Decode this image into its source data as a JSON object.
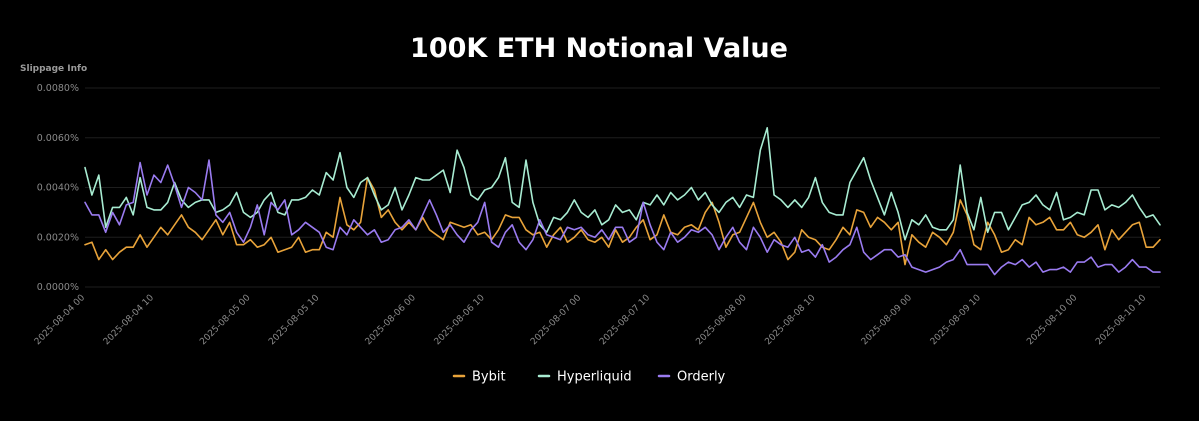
{
  "chart_data": {
    "type": "line",
    "title": "100K ETH Notional Value",
    "ylabel": "Slippage Info",
    "xlabel": "",
    "ylim": [
      0,
      0.008
    ],
    "y_ticks": [
      {
        "value": 0,
        "label": "0.0000%"
      },
      {
        "value": 0.002,
        "label": "0.0020%"
      },
      {
        "value": 0.004,
        "label": "0.0040%"
      },
      {
        "value": 0.006,
        "label": "0.0060%"
      },
      {
        "value": 0.008,
        "label": "0.0080%"
      }
    ],
    "x_start": "2025-08-04 00:00",
    "x_end": "2025-08-10 12:00",
    "x_ticks": [
      {
        "label": "2025-08-04 00",
        "at": "2025-08-04 00:00"
      },
      {
        "label": "2025-08-04 10",
        "at": "2025-08-04 10:00"
      },
      {
        "label": "2025-08-05 00",
        "at": "2025-08-05 00:00"
      },
      {
        "label": "2025-08-05 10",
        "at": "2025-08-05 10:00"
      },
      {
        "label": "2025-08-06 00",
        "at": "2025-08-06 00:00"
      },
      {
        "label": "2025-08-06 10",
        "at": "2025-08-06 10:00"
      },
      {
        "label": "2025-08-07 00",
        "at": "2025-08-07 00:00"
      },
      {
        "label": "2025-08-07 10",
        "at": "2025-08-07 10:00"
      },
      {
        "label": "2025-08-08 00",
        "at": "2025-08-08 00:00"
      },
      {
        "label": "2025-08-08 10",
        "at": "2025-08-08 10:00"
      },
      {
        "label": "2025-08-09 00",
        "at": "2025-08-09 00:00"
      },
      {
        "label": "2025-08-09 10",
        "at": "2025-08-09 10:00"
      },
      {
        "label": "2025-08-10 00",
        "at": "2025-08-10 00:00"
      },
      {
        "label": "2025-08-10 10",
        "at": "2025-08-10 10:00"
      }
    ],
    "grid": true,
    "legend_position": "bottom-center",
    "series": [
      {
        "name": "Bybit",
        "color": "#e8a33a",
        "values": [
          0.0017,
          0.0018,
          0.0011,
          0.0015,
          0.0011,
          0.0014,
          0.0016,
          0.0016,
          0.0021,
          0.0016,
          0.002,
          0.0024,
          0.0021,
          0.0025,
          0.0029,
          0.0024,
          0.0022,
          0.0019,
          0.0023,
          0.0027,
          0.0021,
          0.0026,
          0.0017,
          0.0017,
          0.0019,
          0.0016,
          0.0017,
          0.002,
          0.0014,
          0.0015,
          0.0016,
          0.002,
          0.0014,
          0.0015,
          0.0015,
          0.0022,
          0.002,
          0.0036,
          0.0025,
          0.0023,
          0.0026,
          0.0044,
          0.0039,
          0.0028,
          0.0031,
          0.0026,
          0.0023,
          0.0026,
          0.0023,
          0.0028,
          0.0023,
          0.0021,
          0.0019,
          0.0026,
          0.0025,
          0.0024,
          0.0025,
          0.0021,
          0.0022,
          0.0019,
          0.0023,
          0.0029,
          0.0028,
          0.0028,
          0.0023,
          0.0021,
          0.0022,
          0.0016,
          0.0021,
          0.0024,
          0.0018,
          0.002,
          0.0023,
          0.0019,
          0.0018,
          0.002,
          0.0016,
          0.0023,
          0.0018,
          0.002,
          0.0024,
          0.0027,
          0.0019,
          0.0021,
          0.0029,
          0.0022,
          0.0021,
          0.0024,
          0.0025,
          0.0023,
          0.003,
          0.0034,
          0.0026,
          0.0016,
          0.0021,
          0.0022,
          0.0028,
          0.0034,
          0.0026,
          0.002,
          0.0022,
          0.0018,
          0.0011,
          0.0014,
          0.0023,
          0.002,
          0.0019,
          0.0016,
          0.0015,
          0.0019,
          0.0024,
          0.0021,
          0.0031,
          0.003,
          0.0024,
          0.0028,
          0.0026,
          0.0023,
          0.0026,
          0.0009,
          0.0021,
          0.0018,
          0.0016,
          0.0022,
          0.002,
          0.0017,
          0.0022,
          0.0035,
          0.0029,
          0.0017,
          0.0015,
          0.0026,
          0.0021,
          0.0014,
          0.0015,
          0.0019,
          0.0017,
          0.0028,
          0.0025,
          0.0026,
          0.0028,
          0.0023,
          0.0023,
          0.0026,
          0.0021,
          0.002,
          0.0022,
          0.0025,
          0.0015,
          0.0023,
          0.0019,
          0.0022,
          0.0025,
          0.0026,
          0.0016,
          0.0016,
          0.0019
        ]
      },
      {
        "name": "Hyperliquid",
        "color": "#a8ecd2",
        "values": [
          0.0048,
          0.0037,
          0.0045,
          0.0024,
          0.0032,
          0.0032,
          0.0036,
          0.0029,
          0.0044,
          0.0032,
          0.0031,
          0.0031,
          0.0034,
          0.0042,
          0.0035,
          0.0032,
          0.0034,
          0.0035,
          0.0035,
          0.003,
          0.0031,
          0.0033,
          0.0038,
          0.003,
          0.0028,
          0.003,
          0.0035,
          0.0038,
          0.003,
          0.0029,
          0.0035,
          0.0035,
          0.0036,
          0.0039,
          0.0037,
          0.0046,
          0.0043,
          0.0054,
          0.004,
          0.0036,
          0.0042,
          0.0044,
          0.0037,
          0.0031,
          0.0033,
          0.004,
          0.0031,
          0.0037,
          0.0044,
          0.0043,
          0.0043,
          0.0045,
          0.0047,
          0.0038,
          0.0055,
          0.0048,
          0.0037,
          0.0035,
          0.0039,
          0.004,
          0.0044,
          0.0052,
          0.0034,
          0.0032,
          0.0051,
          0.0034,
          0.0025,
          0.0022,
          0.0028,
          0.0027,
          0.003,
          0.0035,
          0.003,
          0.0028,
          0.0031,
          0.0025,
          0.0027,
          0.0033,
          0.003,
          0.0031,
          0.0027,
          0.0034,
          0.0033,
          0.0037,
          0.0033,
          0.0038,
          0.0035,
          0.0037,
          0.004,
          0.0035,
          0.0038,
          0.0033,
          0.003,
          0.0034,
          0.0036,
          0.0032,
          0.0037,
          0.0036,
          0.0055,
          0.0064,
          0.0037,
          0.0035,
          0.0032,
          0.0035,
          0.0032,
          0.0036,
          0.0044,
          0.0034,
          0.003,
          0.0029,
          0.0029,
          0.0042,
          0.0047,
          0.0052,
          0.0043,
          0.0036,
          0.0029,
          0.0038,
          0.003,
          0.0019,
          0.0027,
          0.0025,
          0.0029,
          0.0024,
          0.0023,
          0.0023,
          0.0027,
          0.0049,
          0.003,
          0.0023,
          0.0036,
          0.0022,
          0.003,
          0.003,
          0.0023,
          0.0028,
          0.0033,
          0.0034,
          0.0037,
          0.0033,
          0.0031,
          0.0038,
          0.0027,
          0.0028,
          0.003,
          0.0029,
          0.0039,
          0.0039,
          0.0031,
          0.0033,
          0.0032,
          0.0034,
          0.0037,
          0.0032,
          0.0028,
          0.0029,
          0.0025
        ]
      },
      {
        "name": "Orderly",
        "color": "#9a7bf0",
        "values": [
          0.0034,
          0.0029,
          0.0029,
          0.0022,
          0.003,
          0.0025,
          0.0033,
          0.0034,
          0.005,
          0.0037,
          0.0045,
          0.0042,
          0.0049,
          0.0041,
          0.0032,
          0.004,
          0.0038,
          0.0035,
          0.0051,
          0.0029,
          0.0026,
          0.003,
          0.0022,
          0.0018,
          0.0024,
          0.0033,
          0.0021,
          0.0034,
          0.0031,
          0.0035,
          0.0021,
          0.0023,
          0.0026,
          0.0024,
          0.0022,
          0.0016,
          0.0015,
          0.0024,
          0.0021,
          0.0027,
          0.0024,
          0.0021,
          0.0023,
          0.0018,
          0.0019,
          0.0023,
          0.0024,
          0.0027,
          0.0023,
          0.0029,
          0.0035,
          0.0029,
          0.0022,
          0.0025,
          0.0021,
          0.0018,
          0.0023,
          0.0026,
          0.0034,
          0.0018,
          0.0016,
          0.0022,
          0.0025,
          0.0018,
          0.0015,
          0.0019,
          0.0027,
          0.0021,
          0.002,
          0.0019,
          0.0024,
          0.0023,
          0.0024,
          0.0021,
          0.002,
          0.0023,
          0.0019,
          0.0024,
          0.0024,
          0.0018,
          0.002,
          0.0034,
          0.0025,
          0.0018,
          0.0015,
          0.0022,
          0.0018,
          0.002,
          0.0023,
          0.0022,
          0.0024,
          0.0021,
          0.0015,
          0.002,
          0.0024,
          0.0018,
          0.0015,
          0.0024,
          0.002,
          0.0014,
          0.0019,
          0.0017,
          0.0016,
          0.002,
          0.0014,
          0.0015,
          0.0012,
          0.0017,
          0.001,
          0.0012,
          0.0015,
          0.0017,
          0.0024,
          0.0014,
          0.0011,
          0.0013,
          0.0015,
          0.0015,
          0.0012,
          0.0013,
          0.0008,
          0.0007,
          0.0006,
          0.0007,
          0.0008,
          0.001,
          0.0011,
          0.0015,
          0.0009,
          0.0009,
          0.0009,
          0.0009,
          0.0005,
          0.0008,
          0.001,
          0.0009,
          0.0011,
          0.0008,
          0.001,
          0.0006,
          0.0007,
          0.0007,
          0.0008,
          0.0006,
          0.001,
          0.001,
          0.0012,
          0.0008,
          0.0009,
          0.0009,
          0.0006,
          0.0008,
          0.0011,
          0.0008,
          0.0008,
          0.0006,
          0.0006
        ]
      }
    ]
  }
}
